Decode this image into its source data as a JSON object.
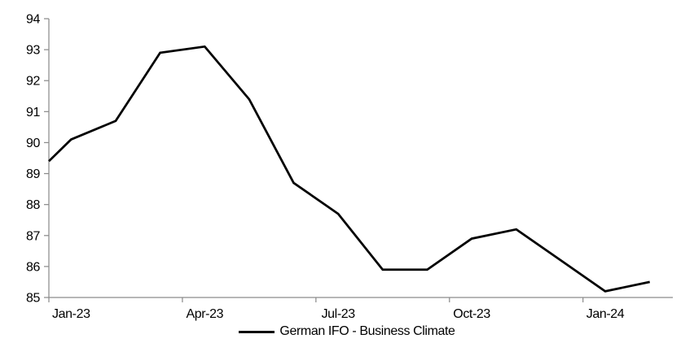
{
  "chart_data": {
    "type": "line",
    "title": "",
    "legend": "German IFO - Business Climate",
    "categories": [
      "Jan-23",
      "Feb-23",
      "Mar-23",
      "Apr-23",
      "May-23",
      "Jun-23",
      "Jul-23",
      "Aug-23",
      "Sep-23",
      "Oct-23",
      "Nov-23",
      "Dec-23",
      "Jan-24",
      "Feb-24"
    ],
    "series": [
      {
        "name": "German IFO - Business Climate",
        "values": [
          90.1,
          90.7,
          92.9,
          93.1,
          91.4,
          88.7,
          87.7,
          85.9,
          85.9,
          86.9,
          87.2,
          86.2,
          85.2,
          85.5
        ],
        "left_edge_lead_in_value": 89.4,
        "color": "#000000"
      }
    ],
    "ylim": [
      85,
      94
    ],
    "y_tick_step": 1,
    "y_tick_labels": [
      "85",
      "86",
      "87",
      "88",
      "89",
      "90",
      "91",
      "92",
      "93",
      "94"
    ],
    "x_tick_labels": [
      "Jan-23",
      "Apr-23",
      "Jul-23",
      "Oct-23",
      "Jan-24"
    ],
    "x_tick_label_indices": [
      0,
      3,
      6,
      9,
      12
    ],
    "grid": "off",
    "legend_position": "bottom-center",
    "axis_color": "#8c8c8c",
    "text_color": "#000000"
  }
}
